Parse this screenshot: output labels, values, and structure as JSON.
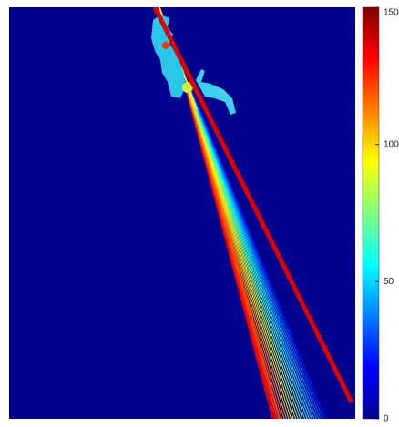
{
  "chart_data": {
    "type": "image",
    "colorbar": true,
    "clim": [
      0,
      150
    ],
    "cticks": [
      0,
      50,
      100,
      150
    ],
    "colormap": "jet"
  }
}
